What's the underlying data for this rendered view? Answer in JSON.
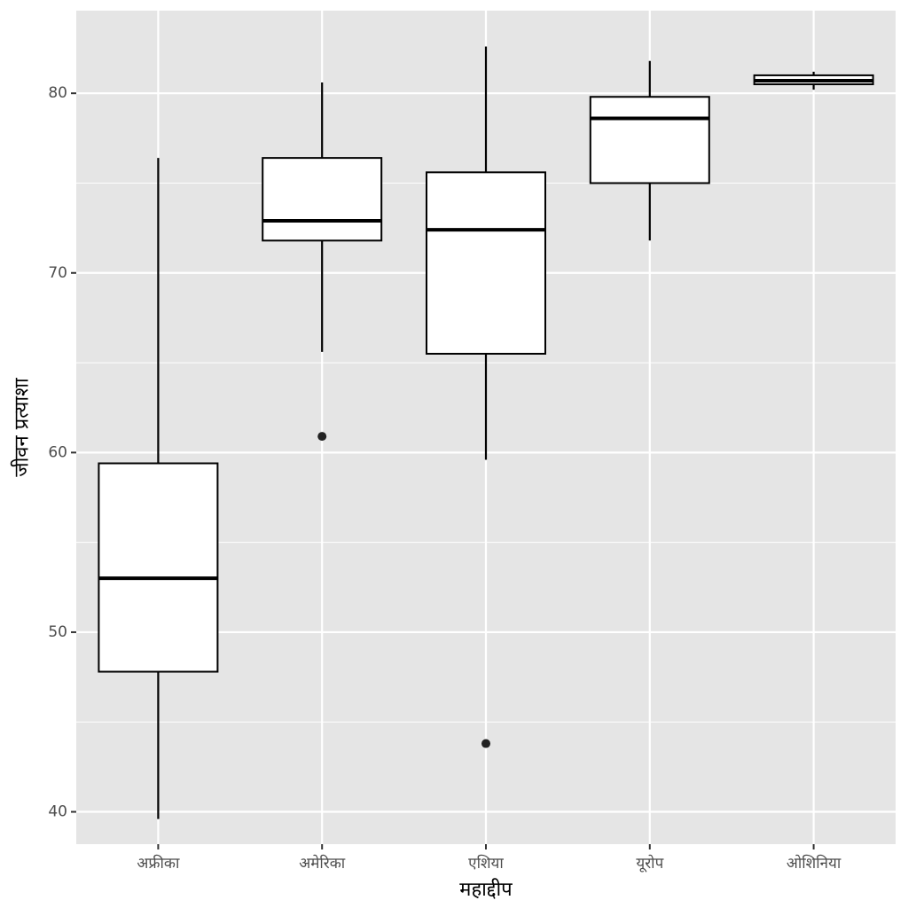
{
  "chart_data": {
    "type": "boxplot",
    "xlabel": "महाद्दीप",
    "ylabel": "जीवन प्रत्याशा",
    "ylim": [
      38.2,
      84.6
    ],
    "y_ticks": [
      40,
      50,
      60,
      70,
      80
    ],
    "grid": true,
    "categories": [
      "अफ्रीका",
      "अमेरिका",
      "एशिया",
      "यूरोप",
      "ओशिनिया"
    ],
    "boxes": [
      {
        "category": "अफ्रीका",
        "whisker_low": 39.6,
        "q1": 47.8,
        "median": 53.0,
        "q3": 59.4,
        "whisker_high": 76.4,
        "outliers": []
      },
      {
        "category": "अमेरिका",
        "whisker_low": 65.6,
        "q1": 71.8,
        "median": 72.9,
        "q3": 76.4,
        "whisker_high": 80.6,
        "outliers": [
          60.9
        ]
      },
      {
        "category": "एशिया",
        "whisker_low": 59.6,
        "q1": 65.5,
        "median": 72.4,
        "q3": 75.6,
        "whisker_high": 82.6,
        "outliers": [
          43.8
        ]
      },
      {
        "category": "यूरोप",
        "whisker_low": 71.8,
        "q1": 75.0,
        "median": 78.6,
        "q3": 79.8,
        "whisker_high": 81.8,
        "outliers": []
      },
      {
        "category": "ओशिनिया",
        "whisker_low": 80.2,
        "q1": 80.5,
        "median": 80.7,
        "q3": 81.0,
        "whisker_high": 81.2,
        "outliers": []
      }
    ]
  },
  "colors": {
    "panel_background": "#e5e5e5",
    "grid": "#ffffff",
    "box_fill": "#ffffff",
    "box_stroke": "#000000",
    "outlier": "#222222"
  }
}
